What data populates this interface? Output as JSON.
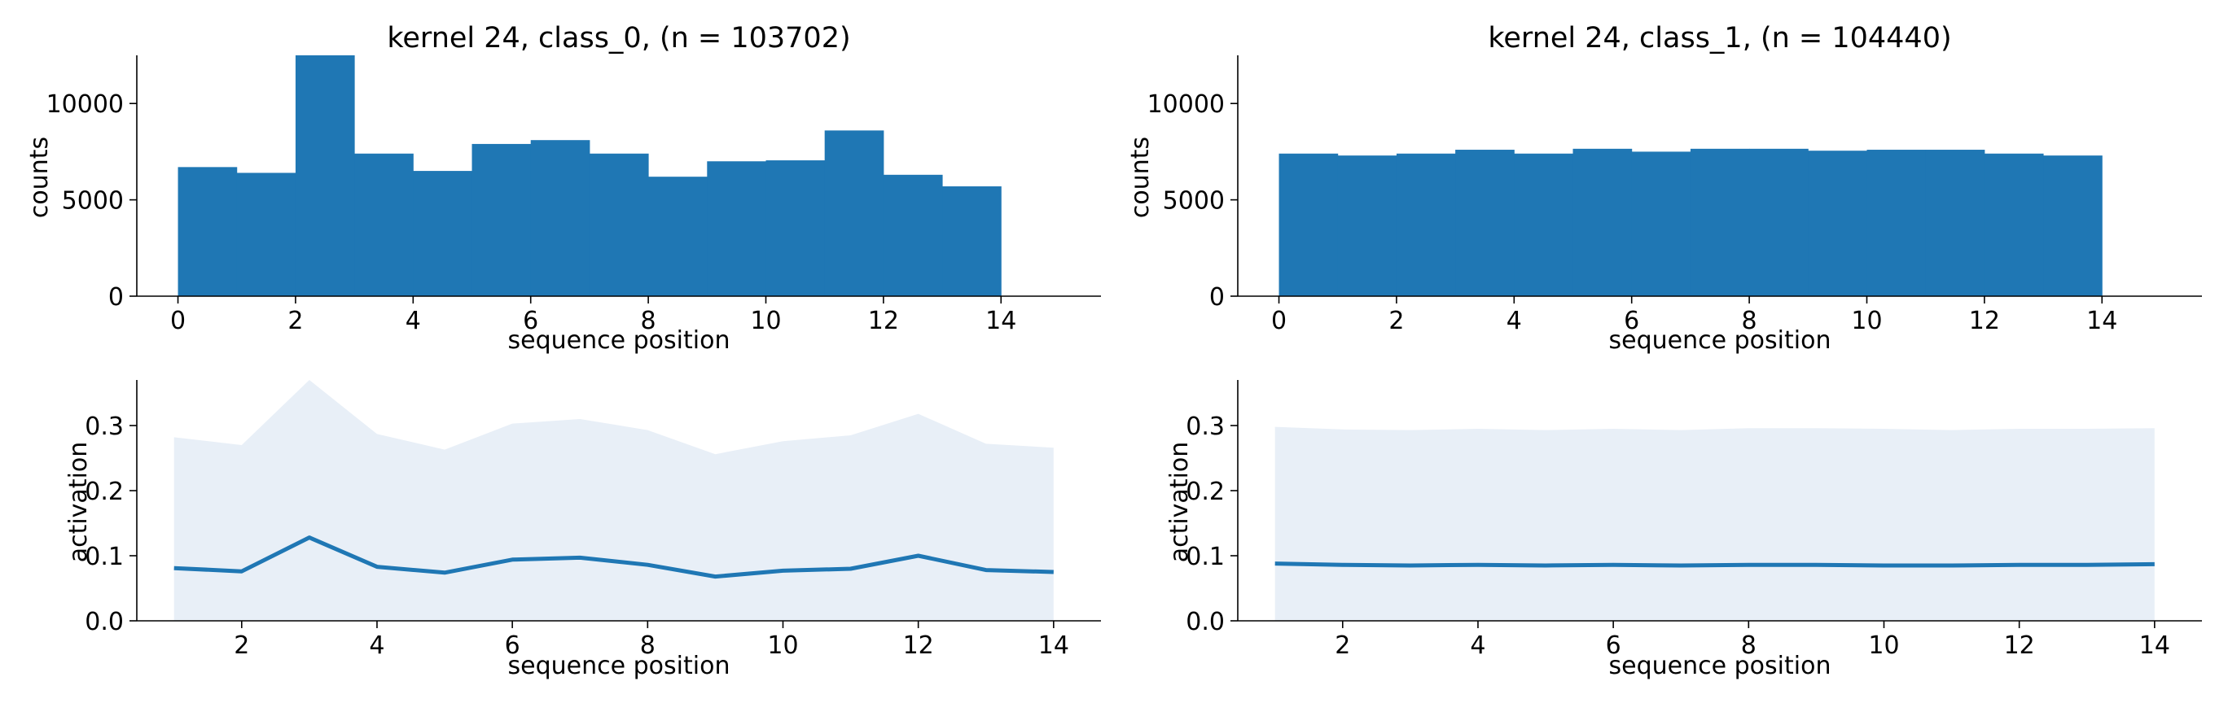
{
  "colors": {
    "bar": "#1f77b4",
    "line": "#1f77b4",
    "band": "#e8eff7",
    "axis": "#000000"
  },
  "chart_data": [
    {
      "type": "bar",
      "title": "kernel 24, class_0, (n = 103702)",
      "xlabel": "sequence position",
      "ylabel": "counts",
      "bin_edges": [
        0,
        1,
        2,
        3,
        4,
        5,
        6,
        7,
        8,
        9,
        10,
        11,
        12,
        13,
        14
      ],
      "values": [
        6700,
        6400,
        12500,
        7400,
        6500,
        7900,
        8100,
        7400,
        6200,
        7000,
        7050,
        8600,
        6300,
        5700
      ],
      "xlim": [
        -0.7,
        15.7
      ],
      "ylim": [
        0,
        12500
      ],
      "xticks": [
        "0",
        "2",
        "4",
        "6",
        "8",
        "10",
        "12",
        "14"
      ],
      "yticks": [
        "0",
        "5000",
        "10000"
      ],
      "grid": false
    },
    {
      "type": "bar",
      "title": "kernel 24, class_1, (n = 104440)",
      "xlabel": "sequence position",
      "ylabel": "counts",
      "bin_edges": [
        0,
        1,
        2,
        3,
        4,
        5,
        6,
        7,
        8,
        9,
        10,
        11,
        12,
        13,
        14
      ],
      "values": [
        7400,
        7300,
        7400,
        7600,
        7400,
        7650,
        7500,
        7650,
        7650,
        7550,
        7600,
        7600,
        7400,
        7300
      ],
      "xlim": [
        -0.7,
        15.7
      ],
      "ylim": [
        0,
        12500
      ],
      "xticks": [
        "0",
        "2",
        "4",
        "6",
        "8",
        "10",
        "12",
        "14"
      ],
      "yticks": [
        "0",
        "5000",
        "10000"
      ],
      "grid": false
    },
    {
      "type": "area",
      "title": "",
      "xlabel": "sequence position",
      "ylabel": "activation",
      "x": [
        1,
        2,
        3,
        4,
        5,
        6,
        7,
        8,
        9,
        10,
        11,
        12,
        13,
        14
      ],
      "series": [
        {
          "kind": "line",
          "values": [
            0.081,
            0.076,
            0.128,
            0.083,
            0.074,
            0.094,
            0.097,
            0.086,
            0.068,
            0.077,
            0.08,
            0.1,
            0.078,
            0.075
          ]
        },
        {
          "kind": "band",
          "values": [
            0.282,
            0.27,
            0.37,
            0.287,
            0.263,
            0.303,
            0.31,
            0.293,
            0.256,
            0.276,
            0.285,
            0.318,
            0.272,
            0.266
          ]
        }
      ],
      "xlim": [
        0.45,
        14.7
      ],
      "ylim": [
        0,
        0.37
      ],
      "xticks": [
        "2",
        "4",
        "6",
        "8",
        "10",
        "12",
        "14"
      ],
      "yticks": [
        "0.0",
        "0.1",
        "0.2",
        "0.3"
      ],
      "grid": false
    },
    {
      "type": "area",
      "title": "",
      "xlabel": "sequence position",
      "ylabel": "activation",
      "x": [
        1,
        2,
        3,
        4,
        5,
        6,
        7,
        8,
        9,
        10,
        11,
        12,
        13,
        14
      ],
      "series": [
        {
          "kind": "line",
          "values": [
            0.088,
            0.086,
            0.085,
            0.086,
            0.085,
            0.086,
            0.085,
            0.086,
            0.086,
            0.085,
            0.085,
            0.086,
            0.086,
            0.087
          ]
        },
        {
          "kind": "band",
          "values": [
            0.298,
            0.294,
            0.293,
            0.295,
            0.293,
            0.295,
            0.293,
            0.296,
            0.296,
            0.295,
            0.293,
            0.295,
            0.295,
            0.296
          ]
        }
      ],
      "xlim": [
        0.45,
        14.7
      ],
      "ylim": [
        0,
        0.37
      ],
      "xticks": [
        "2",
        "4",
        "6",
        "8",
        "10",
        "12",
        "14"
      ],
      "yticks": [
        "0.0",
        "0.1",
        "0.2",
        "0.3"
      ],
      "grid": false
    }
  ]
}
